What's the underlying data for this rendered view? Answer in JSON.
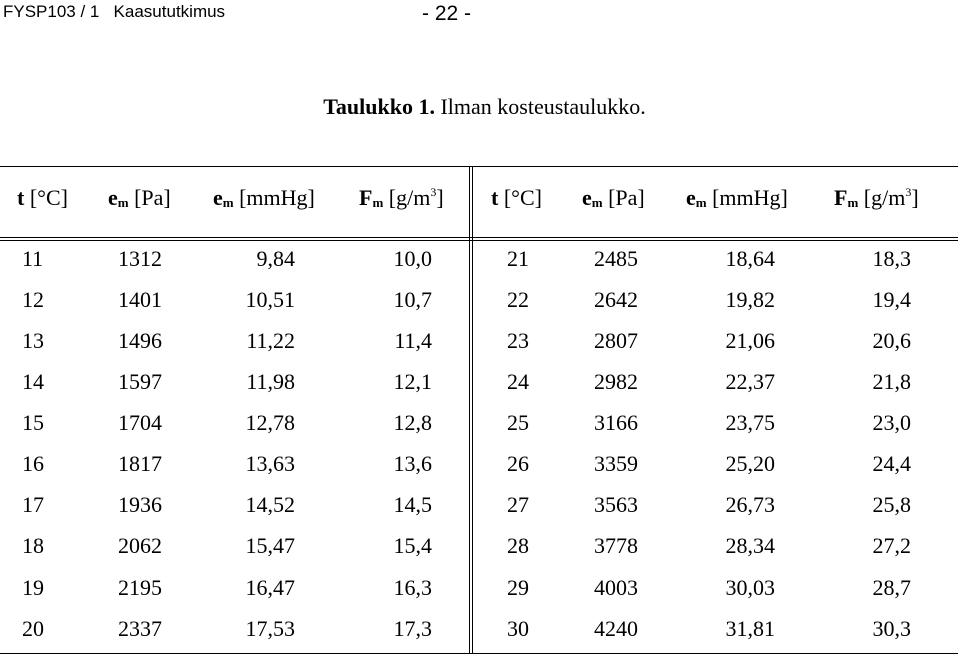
{
  "header": {
    "course": "FYSP103 / 1   Kaasututkimus",
    "page_number": "- 22 -"
  },
  "caption": {
    "label": "Taulukko 1.",
    "text": " Ilman kosteustaulukko."
  },
  "table": {
    "columns": [
      {
        "symbol": "t",
        "sub": "",
        "unit": "[°C]"
      },
      {
        "symbol": "e",
        "sub": "m",
        "unit": "[Pa]"
      },
      {
        "symbol": "e",
        "sub": "m",
        "unit": "[mmHg]"
      },
      {
        "symbol": "F",
        "sub": "m",
        "unit": "[g/m",
        "sup": "3",
        "unit_end": "]"
      }
    ],
    "left_rows": [
      [
        "11",
        "1312",
        "9,84",
        "10,0"
      ],
      [
        "12",
        "1401",
        "10,51",
        "10,7"
      ],
      [
        "13",
        "1496",
        "11,22",
        "11,4"
      ],
      [
        "14",
        "1597",
        "11,98",
        "12,1"
      ],
      [
        "15",
        "1704",
        "12,78",
        "12,8"
      ],
      [
        "16",
        "1817",
        "13,63",
        "13,6"
      ],
      [
        "17",
        "1936",
        "14,52",
        "14,5"
      ],
      [
        "18",
        "2062",
        "15,47",
        "15,4"
      ],
      [
        "19",
        "2195",
        "16,47",
        "16,3"
      ],
      [
        "20",
        "2337",
        "17,53",
        "17,3"
      ]
    ],
    "right_rows": [
      [
        "21",
        "2485",
        "18,64",
        "18,3"
      ],
      [
        "22",
        "2642",
        "19,82",
        "19,4"
      ],
      [
        "23",
        "2807",
        "21,06",
        "20,6"
      ],
      [
        "24",
        "2982",
        "22,37",
        "21,8"
      ],
      [
        "25",
        "3166",
        "23,75",
        "23,0"
      ],
      [
        "26",
        "3359",
        "25,20",
        "24,4"
      ],
      [
        "27",
        "3563",
        "26,73",
        "25,8"
      ],
      [
        "28",
        "3778",
        "28,34",
        "27,2"
      ],
      [
        "29",
        "4003",
        "30,03",
        "28,7"
      ],
      [
        "30",
        "4240",
        "31,81",
        "30,3"
      ]
    ]
  }
}
